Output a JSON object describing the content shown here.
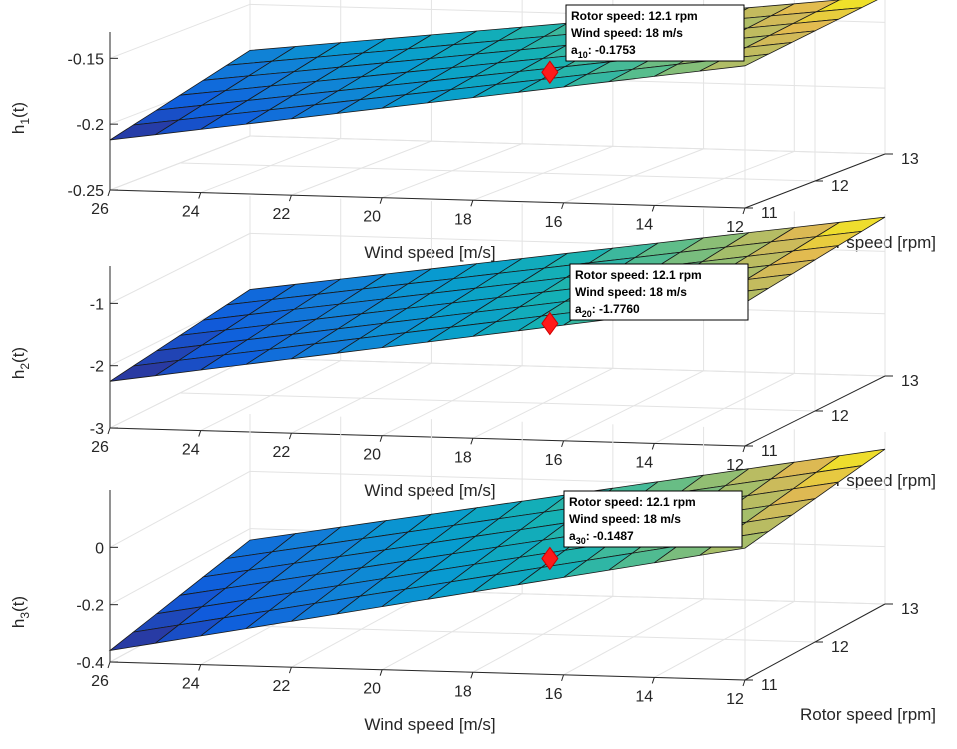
{
  "chart_data": [
    {
      "type": "surface",
      "title": "",
      "xlabel": "Wind speed [m/s]",
      "ylabel": "Rotor speed [rpm]",
      "zlabel": "h",
      "zlabel_sub": "1",
      "zlabel_suffix": "(t)",
      "x_ticks": [
        "26",
        "24",
        "22",
        "20",
        "18",
        "16",
        "14",
        "12"
      ],
      "y_ticks": [
        "11",
        "12",
        "13"
      ],
      "z_ticks": [
        "-0.15",
        "-0.2",
        "-0.25"
      ],
      "xlim": [
        12,
        26
      ],
      "ylim": [
        11,
        13
      ],
      "zlim": [
        -0.25,
        -0.13
      ],
      "surface_corners": {
        "x26_y11": -0.212,
        "x12_y11": -0.142,
        "x26_y13": -0.185,
        "x12_y13": -0.13
      },
      "marker": {
        "wind_speed": 18,
        "rotor_speed": 12.1,
        "value": -0.1753
      },
      "datatip": {
        "line1": "Rotor speed: 12.1 rpm",
        "line2": "Wind speed: 18 m/s",
        "line3_prefix": "a",
        "line3_sub": "10",
        "line3_suffix": ": -0.1753"
      }
    },
    {
      "type": "surface",
      "title": "",
      "xlabel": "Wind speed [m/s]",
      "ylabel": "Rotor speed [rpm]",
      "zlabel": "h",
      "zlabel_sub": "2",
      "zlabel_suffix": "(t)",
      "x_ticks": [
        "26",
        "24",
        "22",
        "20",
        "18",
        "16",
        "14",
        "12"
      ],
      "y_ticks": [
        "11",
        "12",
        "13"
      ],
      "z_ticks": [
        "-1",
        "-2",
        "-3"
      ],
      "xlim": [
        12,
        26
      ],
      "ylim": [
        11,
        13
      ],
      "zlim": [
        -3,
        -0.4
      ],
      "surface_corners": {
        "x26_y11": -2.25,
        "x12_y11": -0.7,
        "x26_y13": -1.9,
        "x12_y13": -0.45
      },
      "marker": {
        "wind_speed": 18,
        "rotor_speed": 12.1,
        "value": -1.776
      },
      "datatip": {
        "line1": "Rotor speed: 12.1 rpm",
        "line2": "Wind speed: 18 m/s",
        "line3_prefix": "a",
        "line3_sub": "20",
        "line3_suffix": ": -1.7760"
      }
    },
    {
      "type": "surface",
      "title": "",
      "xlabel": "Wind speed [m/s]",
      "ylabel": "Rotor speed [rpm]",
      "zlabel": "h",
      "zlabel_sub": "3",
      "zlabel_suffix": "(t)",
      "x_ticks": [
        "26",
        "24",
        "22",
        "20",
        "18",
        "16",
        "14",
        "12"
      ],
      "y_ticks": [
        "11",
        "12",
        "13"
      ],
      "z_ticks": [
        "0",
        "-0.2",
        "-0.4"
      ],
      "xlim": [
        12,
        26
      ],
      "ylim": [
        11,
        13
      ],
      "zlim": [
        -0.4,
        0.2
      ],
      "surface_corners": {
        "x26_y11": -0.36,
        "x12_y11": 0.06,
        "x26_y13": -0.24,
        "x12_y13": 0.14
      },
      "marker": {
        "wind_speed": 18,
        "rotor_speed": 12.1,
        "value": -0.1487
      },
      "datatip": {
        "line1": "Rotor speed: 12.1 rpm",
        "line2": "Wind speed: 18 m/s",
        "line3_prefix": "a",
        "line3_sub": "30",
        "line3_suffix": ": -0.1487"
      }
    }
  ]
}
